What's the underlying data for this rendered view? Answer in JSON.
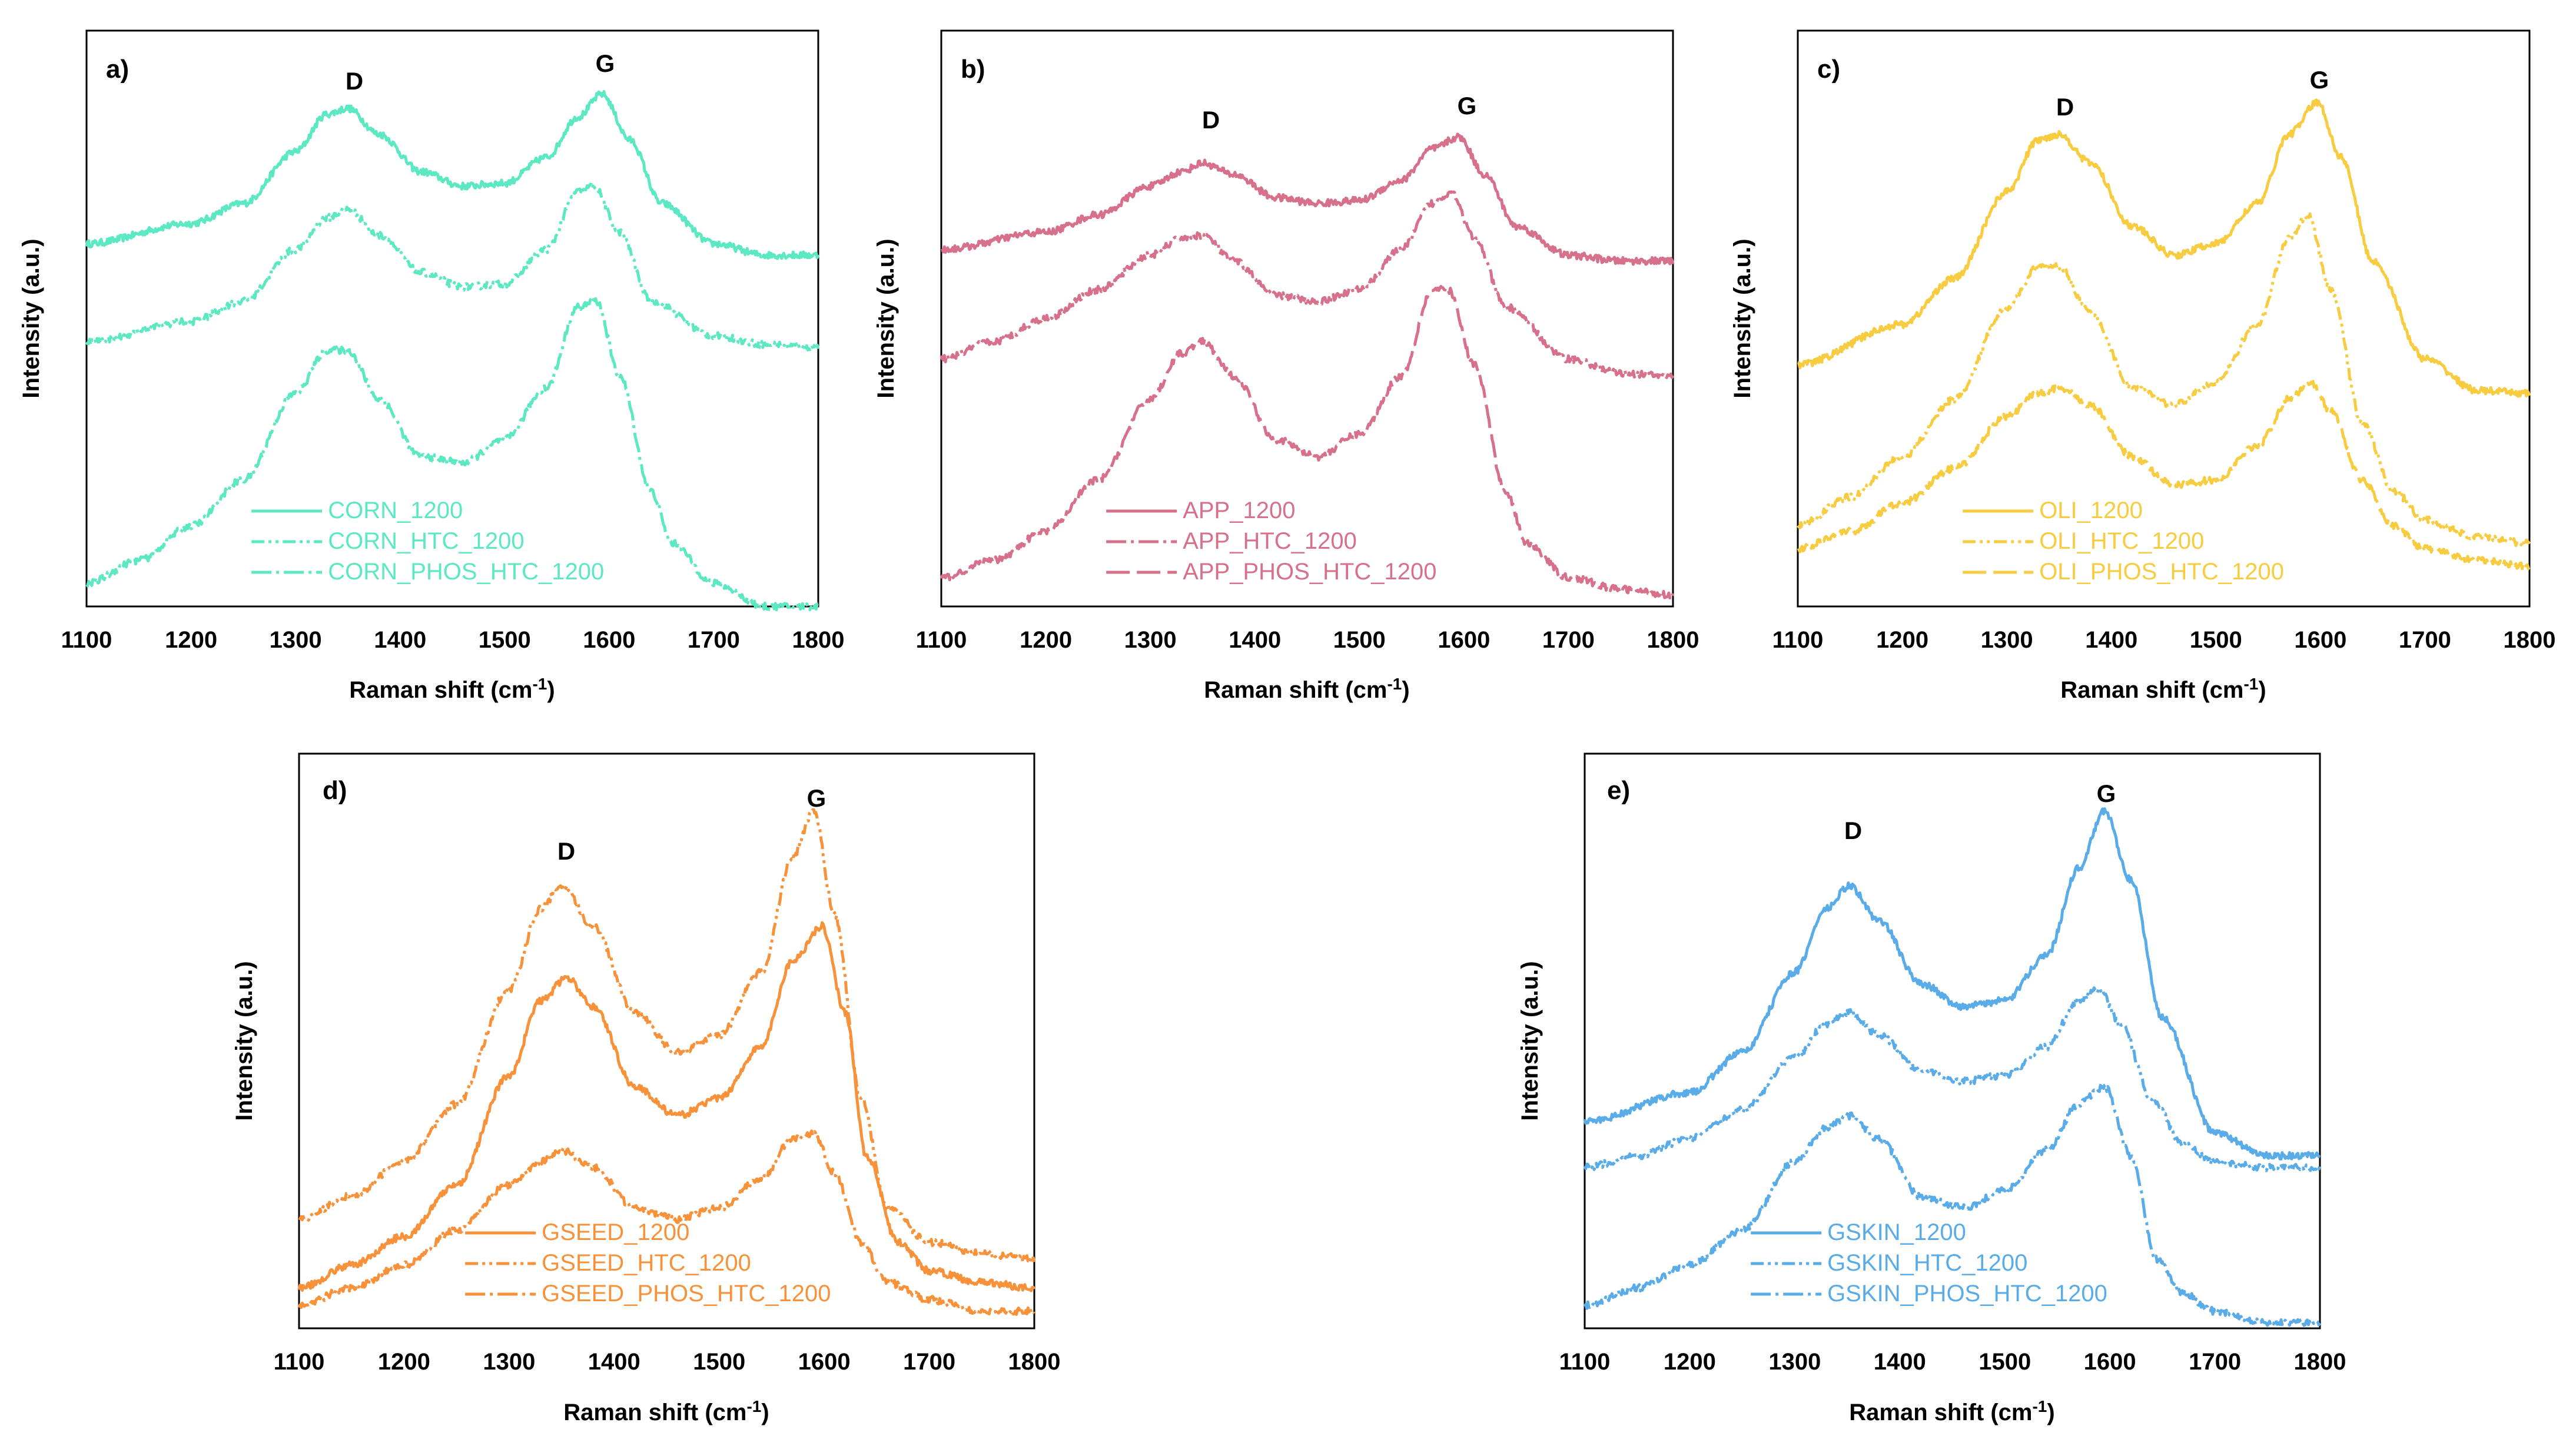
{
  "figure": {
    "axis_common": {
      "xlabel_text": "Raman shift (cm",
      "xlabel_sup": "-1",
      "xlabel_close": ")",
      "ylabel": "Intensity (a.u.)",
      "x_ticks": [
        "1100",
        "1200",
        "1300",
        "1400",
        "1500",
        "1600",
        "1700",
        "1800"
      ]
    },
    "peaks": {
      "d": "D",
      "g": "G"
    }
  },
  "chart_data": [
    {
      "id": "a",
      "panel_label": "a)",
      "type": "line",
      "color": "#5ce8c2",
      "title": "",
      "xlabel": "Raman shift (cm-1)",
      "ylabel": "Intensity (a.u.)",
      "xlim": [
        1100,
        1800
      ],
      "ylim": [
        0,
        100
      ],
      "x_ticks": [
        1100,
        1200,
        1300,
        1400,
        1500,
        1600,
        1700,
        1800
      ],
      "peak_positions": {
        "D": 1350,
        "G": 1593
      },
      "legend": [
        "CORN_1200",
        "CORN_HTC_1200",
        "CORN_PHOS_HTC_1200"
      ],
      "legend_position": "bottom-center",
      "series": [
        {
          "name": "CORN_1200",
          "dash": "solid",
          "x": [
            1100,
            1200,
            1250,
            1300,
            1330,
            1350,
            1380,
            1420,
            1460,
            1500,
            1540,
            1570,
            1593,
            1620,
            1650,
            1700,
            1750,
            1800
          ],
          "values": [
            63,
            66.5,
            70,
            79,
            85.5,
            86.5,
            82,
            75.5,
            73,
            73.5,
            78,
            85,
            89,
            81,
            70,
            63,
            61,
            61
          ]
        },
        {
          "name": "CORN_HTC_1200",
          "dash": "dashdotdot",
          "x": [
            1100,
            1200,
            1250,
            1300,
            1330,
            1350,
            1380,
            1420,
            1460,
            1500,
            1540,
            1570,
            1585,
            1610,
            1640,
            1700,
            1750,
            1800
          ],
          "values": [
            46,
            49.5,
            53,
            62,
            67.5,
            69,
            64.5,
            58,
            55.5,
            56,
            62,
            72,
            73,
            65,
            53,
            47,
            45.5,
            45
          ]
        },
        {
          "name": "CORN_PHOS_HTC_1200",
          "dash": "dashdot",
          "x": [
            1100,
            1150,
            1200,
            1250,
            1300,
            1330,
            1350,
            1380,
            1420,
            1460,
            1500,
            1540,
            1570,
            1588,
            1610,
            1640,
            1660,
            1700,
            1750
          ],
          "values": [
            4,
            8,
            14,
            22,
            37,
            44.5,
            44.5,
            36,
            26,
            25,
            29,
            38,
            52,
            53,
            40,
            20,
            11,
            4,
            0
          ]
        }
      ]
    },
    {
      "id": "b",
      "panel_label": "b)",
      "type": "line",
      "color": "#d7708b",
      "title": "",
      "xlabel": "Raman shift (cm-1)",
      "ylabel": "Intensity (a.u.)",
      "xlim": [
        1100,
        1800
      ],
      "ylim": [
        0,
        100
      ],
      "x_ticks": [
        1100,
        1200,
        1300,
        1400,
        1500,
        1600,
        1700,
        1800
      ],
      "peak_positions": {
        "D": 1352,
        "G": 1595
      },
      "legend": [
        "APP_1200",
        "APP_HTC_1200",
        "APP_PHOS_HTC_1200"
      ],
      "legend_position": "bottom-center",
      "series": [
        {
          "name": "APP_1200",
          "dash": "solid",
          "x": [
            1100,
            1200,
            1250,
            1300,
            1330,
            1350,
            1380,
            1420,
            1460,
            1500,
            1540,
            1570,
            1595,
            1620,
            1650,
            1700,
            1750,
            1800
          ],
          "values": [
            62,
            65,
            68,
            73,
            75.5,
            77,
            75,
            71,
            70,
            70.5,
            74,
            79.5,
            81.5,
            75,
            66,
            61,
            60,
            60
          ]
        },
        {
          "name": "APP_HTC_1200",
          "dash": "dashdot",
          "x": [
            1100,
            1150,
            1200,
            1250,
            1300,
            1330,
            1350,
            1380,
            1420,
            1460,
            1500,
            1540,
            1570,
            1588,
            1610,
            1640,
            1700,
            1750,
            1800
          ],
          "values": [
            43,
            46,
            50,
            55,
            61,
            64,
            64.5,
            60,
            54,
            53,
            55,
            62,
            70,
            72,
            64,
            52,
            43,
            40.5,
            40
          ]
        },
        {
          "name": "APP_PHOS_HTC_1200",
          "dash": "longdash",
          "x": [
            1100,
            1150,
            1200,
            1250,
            1300,
            1330,
            1350,
            1380,
            1420,
            1460,
            1500,
            1540,
            1570,
            1585,
            1610,
            1640,
            1660,
            1700,
            1750,
            1800
          ],
          "values": [
            5,
            8,
            13,
            22,
            36,
            44,
            46,
            40,
            29,
            26,
            30,
            40,
            55,
            55,
            42,
            20,
            11,
            5,
            3,
            2
          ]
        }
      ]
    },
    {
      "id": "c",
      "panel_label": "c)",
      "type": "line",
      "color": "#f7cc40",
      "title": "",
      "xlabel": "Raman shift (cm-1)",
      "ylabel": "Intensity (a.u.)",
      "xlim": [
        1100,
        1800
      ],
      "ylim": [
        0,
        100
      ],
      "x_ticks": [
        1100,
        1200,
        1300,
        1400,
        1500,
        1600,
        1700,
        1800
      ],
      "peak_positions": {
        "D": 1350,
        "G": 1597
      },
      "legend": [
        "OLI_1200",
        "OLI_HTC_1200",
        "OLI_PHOS_HTC_1200"
      ],
      "legend_position": "bottom-center",
      "series": [
        {
          "name": "OLI_1200",
          "dash": "solid",
          "x": [
            1100,
            1200,
            1250,
            1300,
            1330,
            1350,
            1380,
            1420,
            1460,
            1500,
            1540,
            1570,
            1597,
            1620,
            1650,
            1700,
            1750,
            1800
          ],
          "values": [
            42,
            49,
            57,
            72,
            81,
            82,
            77,
            66,
            61,
            63,
            70,
            82,
            87.5,
            78,
            60,
            43,
            37.5,
            37
          ]
        },
        {
          "name": "OLI_HTC_1200",
          "dash": "dashdotdot",
          "x": [
            1100,
            1150,
            1200,
            1250,
            1300,
            1330,
            1350,
            1380,
            1420,
            1460,
            1500,
            1540,
            1570,
            1588,
            1610,
            1640,
            1670,
            1700,
            1750,
            1800
          ],
          "values": [
            14,
            19,
            26,
            36,
            52,
            59,
            59,
            51,
            38,
            35,
            39,
            49,
            64,
            68,
            55,
            32,
            20,
            15,
            12,
            11
          ]
        },
        {
          "name": "OLI_PHOS_HTC_1200",
          "dash": "longdash",
          "x": [
            1100,
            1150,
            1200,
            1250,
            1300,
            1330,
            1350,
            1380,
            1420,
            1460,
            1500,
            1540,
            1570,
            1590,
            1610,
            1640,
            1670,
            1700,
            1750,
            1800
          ],
          "values": [
            10,
            13,
            18,
            24,
            33,
            37,
            38,
            35,
            26,
            21,
            22,
            28,
            36,
            39,
            34,
            22,
            14,
            10,
            8,
            7
          ]
        }
      ]
    },
    {
      "id": "d",
      "panel_label": "d)",
      "type": "line",
      "color": "#f7923a",
      "title": "",
      "xlabel": "Raman shift (cm-1)",
      "ylabel": "Intensity (a.u.)",
      "xlim": [
        1100,
        1800
      ],
      "ylim": [
        0,
        100
      ],
      "x_ticks": [
        1100,
        1200,
        1300,
        1400,
        1500,
        1600,
        1700,
        1800
      ],
      "peak_positions": {
        "D": 1350,
        "G": 1590
      },
      "legend": [
        "GSEED_1200",
        "GSEED_HTC_1200",
        "GSEED_PHOS_HTC_1200"
      ],
      "legend_position": "bottom-center",
      "series": [
        {
          "name": "GSEED_1200",
          "dash": "solid",
          "x": [
            1100,
            1150,
            1200,
            1250,
            1300,
            1330,
            1355,
            1380,
            1420,
            1460,
            1500,
            1540,
            1570,
            1598,
            1620,
            1640,
            1670,
            1700,
            1750,
            1800
          ],
          "values": [
            7,
            11,
            16,
            25,
            44,
            57,
            61,
            56,
            42,
            37,
            40,
            49,
            64,
            70,
            55,
            30,
            15,
            10,
            8,
            7
          ]
        },
        {
          "name": "GSEED_HTC_1200",
          "dash": "dashdotdot",
          "x": [
            1100,
            1150,
            1200,
            1250,
            1300,
            1330,
            1350,
            1380,
            1420,
            1460,
            1500,
            1540,
            1570,
            1590,
            1610,
            1635,
            1660,
            1700,
            1750,
            1800
          ],
          "values": [
            19,
            23,
            29,
            39,
            59,
            73,
            77,
            70,
            55,
            48,
            51,
            62,
            82,
            90,
            72,
            40,
            21,
            15,
            13,
            12
          ]
        },
        {
          "name": "GSEED_PHOS_HTC_1200",
          "dash": "dashdot",
          "x": [
            1100,
            1150,
            1200,
            1250,
            1300,
            1330,
            1350,
            1380,
            1420,
            1460,
            1500,
            1540,
            1570,
            1590,
            1610,
            1635,
            1660,
            1700,
            1750,
            1800
          ],
          "values": [
            4,
            7,
            11,
            17,
            25,
            29,
            31,
            28,
            21,
            19,
            21,
            26,
            33,
            34,
            27,
            15,
            8,
            5,
            3,
            3
          ]
        }
      ]
    },
    {
      "id": "e",
      "panel_label": "e)",
      "type": "line",
      "color": "#5aace8",
      "title": "",
      "xlabel": "Raman shift (cm-1)",
      "ylabel": "Intensity (a.u.)",
      "xlim": [
        1100,
        1800
      ],
      "ylim": [
        0,
        100
      ],
      "x_ticks": [
        1100,
        1200,
        1300,
        1400,
        1500,
        1600,
        1700,
        1800
      ],
      "peak_positions": {
        "D": 1352,
        "G": 1595
      },
      "legend": [
        "GSKIN_1200",
        "GSKIN_HTC_1200",
        "GSKIN_PHOS_HTC_1200"
      ],
      "legend_position": "bottom-center",
      "series": [
        {
          "name": "GSKIN_1200",
          "dash": "solid",
          "x": [
            1100,
            1200,
            1250,
            1300,
            1330,
            1352,
            1380,
            1420,
            1460,
            1500,
            1540,
            1570,
            1595,
            1620,
            1650,
            1700,
            1750,
            1800
          ],
          "values": [
            36,
            41,
            48,
            62,
            73,
            77,
            71,
            60,
            56,
            57,
            65,
            80,
            90,
            78,
            54,
            34,
            30,
            30
          ]
        },
        {
          "name": "GSKIN_HTC_1200",
          "dash": "dashdotdot",
          "x": [
            1100,
            1150,
            1200,
            1250,
            1300,
            1330,
            1352,
            1380,
            1420,
            1460,
            1500,
            1540,
            1570,
            1590,
            1610,
            1640,
            1670,
            1700,
            1750,
            1800
          ],
          "values": [
            28,
            30,
            33,
            38,
            47,
            53,
            55,
            51,
            45,
            43,
            44,
            49,
            57,
            59,
            53,
            40,
            32,
            29,
            28,
            28
          ]
        },
        {
          "name": "GSKIN_PHOS_HTC_1200",
          "dash": "dashdot",
          "x": [
            1100,
            1150,
            1200,
            1250,
            1300,
            1330,
            1352,
            1380,
            1420,
            1460,
            1500,
            1540,
            1570,
            1595,
            1620,
            1645,
            1670,
            1700,
            1750,
            1800
          ],
          "values": [
            4,
            7,
            11,
            17,
            29,
            35,
            37,
            33,
            23,
            21,
            24,
            31,
            39,
            42,
            30,
            12,
            6,
            3,
            1,
            1
          ]
        }
      ]
    }
  ]
}
